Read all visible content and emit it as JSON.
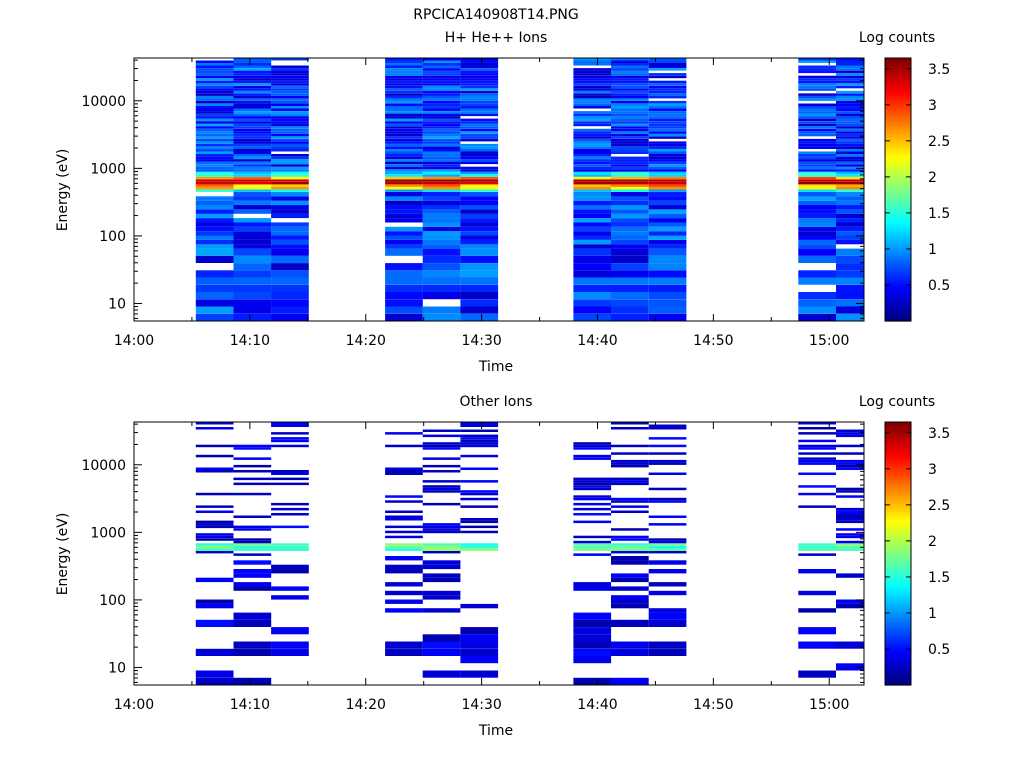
{
  "page_title": "RPCICA140908T14.PNG",
  "chart_data": [
    {
      "type": "heatmap",
      "title": "H+ He++ Ions",
      "xlabel": "Time",
      "ylabel": "Energy (eV)",
      "x_ticks": [
        "14:00",
        "14:10",
        "14:20",
        "14:30",
        "14:40",
        "14:50",
        "15:00"
      ],
      "x_range": [
        "14:00",
        "15:03"
      ],
      "y_scale": "log",
      "y_range": [
        5.5,
        43000
      ],
      "y_ticks": [
        10,
        100,
        1000,
        10000
      ],
      "y_tick_labels": [
        "10",
        "100",
        "1000",
        "10000"
      ],
      "colorbar": {
        "label": "Log counts",
        "range": [
          0,
          3.65
        ],
        "ticks": [
          0.5,
          1,
          1.5,
          2,
          2.5,
          3,
          3.5
        ],
        "tick_labels": [
          "0.5",
          "1",
          "1.5",
          "2",
          "2.5",
          "3",
          "3.5"
        ],
        "colormap": "jet"
      },
      "columns": [
        {
          "start": "14:05:20",
          "end": "14:08:35",
          "band_seed": 1
        },
        {
          "start": "14:08:35",
          "end": "14:11:50",
          "band_seed": 2
        },
        {
          "start": "14:11:50",
          "end": "14:15:05",
          "band_seed": 3
        },
        {
          "start": "14:21:40",
          "end": "14:24:55",
          "band_seed": 4
        },
        {
          "start": "14:24:55",
          "end": "14:28:10",
          "band_seed": 5
        },
        {
          "start": "14:28:10",
          "end": "14:31:25",
          "band_seed": 6
        },
        {
          "start": "14:37:55",
          "end": "14:41:10",
          "band_seed": 7
        },
        {
          "start": "14:41:10",
          "end": "14:44:25",
          "band_seed": 8
        },
        {
          "start": "14:44:25",
          "end": "14:47:40",
          "band_seed": 9
        },
        {
          "start": "14:57:20",
          "end": "15:00:35",
          "band_seed": 10
        },
        {
          "start": "15:00:35",
          "end": "15:03:00",
          "band_seed": 11
        }
      ],
      "peak_energy_eV": 620,
      "peak_value": 3.3
    },
    {
      "type": "heatmap",
      "title": "Other Ions",
      "xlabel": "Time",
      "ylabel": "Energy (eV)",
      "x_ticks": [
        "14:00",
        "14:10",
        "14:20",
        "14:30",
        "14:40",
        "14:50",
        "15:00"
      ],
      "x_range": [
        "14:00",
        "15:03"
      ],
      "y_scale": "log",
      "y_range": [
        5.5,
        43000
      ],
      "y_ticks": [
        10,
        100,
        1000,
        10000
      ],
      "y_tick_labels": [
        "10",
        "100",
        "1000",
        "10000"
      ],
      "colorbar": {
        "label": "Log counts",
        "range": [
          0,
          3.65
        ],
        "ticks": [
          0.5,
          1,
          1.5,
          2,
          2.5,
          3,
          3.5
        ],
        "tick_labels": [
          "0.5",
          "1",
          "1.5",
          "2",
          "2.5",
          "3",
          "3.5"
        ],
        "colormap": "jet"
      },
      "columns": [
        {
          "start": "14:05:20",
          "end": "14:08:35",
          "band_seed": 21
        },
        {
          "start": "14:08:35",
          "end": "14:11:50",
          "band_seed": 22
        },
        {
          "start": "14:11:50",
          "end": "14:15:05",
          "band_seed": 23
        },
        {
          "start": "14:21:40",
          "end": "14:24:55",
          "band_seed": 24
        },
        {
          "start": "14:24:55",
          "end": "14:28:10",
          "band_seed": 25
        },
        {
          "start": "14:28:10",
          "end": "14:31:25",
          "band_seed": 26
        },
        {
          "start": "14:37:55",
          "end": "14:41:10",
          "band_seed": 27
        },
        {
          "start": "14:41:10",
          "end": "14:44:25",
          "band_seed": 28
        },
        {
          "start": "14:44:25",
          "end": "14:47:40",
          "band_seed": 29
        },
        {
          "start": "14:57:20",
          "end": "15:00:35",
          "band_seed": 30
        },
        {
          "start": "15:00:35",
          "end": "15:03:00",
          "band_seed": 31
        }
      ],
      "peak_energy_eV": 620,
      "peak_value": 1.9,
      "sparse": true
    }
  ]
}
